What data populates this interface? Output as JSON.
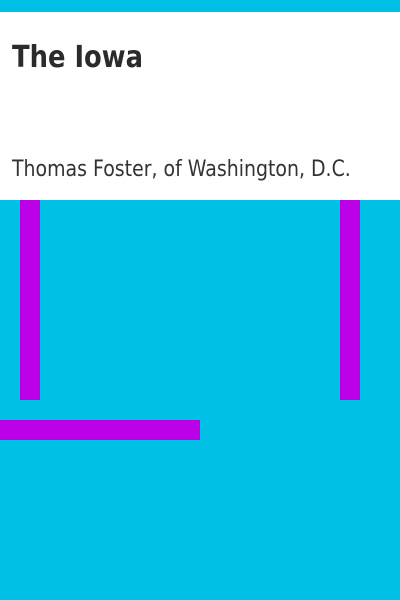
{
  "book": {
    "title": "The Iowa",
    "author": "Thomas Foster, of Washington, D.C."
  },
  "colors": {
    "background": "#00c0e6",
    "title_band": "#ffffff",
    "accent_bars": "#bb00e6",
    "text": "#333333"
  }
}
